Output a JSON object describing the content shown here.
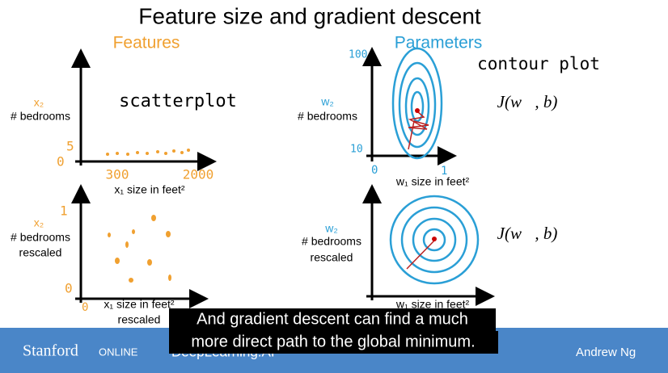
{
  "title": "Feature size and gradient descent",
  "features": {
    "heading": "Features",
    "top": {
      "y_var": "x₂",
      "y_label": "# bedrooms",
      "annotation": "scatterplot",
      "y_ticks": [
        "5",
        "0"
      ],
      "x_ticks": [
        "300",
        "2000"
      ],
      "x_label": "x₁ size in feet²"
    },
    "bottom": {
      "y_var": "x₂",
      "y_label": "# bedrooms",
      "y_label_2": "rescaled",
      "y_ticks": [
        "1",
        "0"
      ],
      "x_ticks": [
        "0"
      ],
      "x_label": "x₁ size in feet²",
      "x_label_2": "rescaled"
    }
  },
  "parameters": {
    "heading": "Parameters",
    "top": {
      "y_var": "w₂",
      "y_label": "# bedrooms",
      "annotation": "contour plot",
      "cost": "J(w⃗, b)",
      "y_ticks": [
        "100",
        "10"
      ],
      "x_ticks": [
        "0",
        "1"
      ],
      "x_label": "w₁ size in feet²"
    },
    "bottom": {
      "y_var": "w₂",
      "y_label": "# bedrooms",
      "y_label_2": "rescaled",
      "cost": "J(w⃗, b)",
      "x_label": "w₁ size in feet²"
    }
  },
  "caption": [
    "And gradient descent can find a much",
    "more direct path to the global minimum."
  ],
  "footer": {
    "left": "Stanford",
    "left_2": "ONLINE",
    "middle": "DeepLearning.AI",
    "right": "Andrew Ng"
  }
}
